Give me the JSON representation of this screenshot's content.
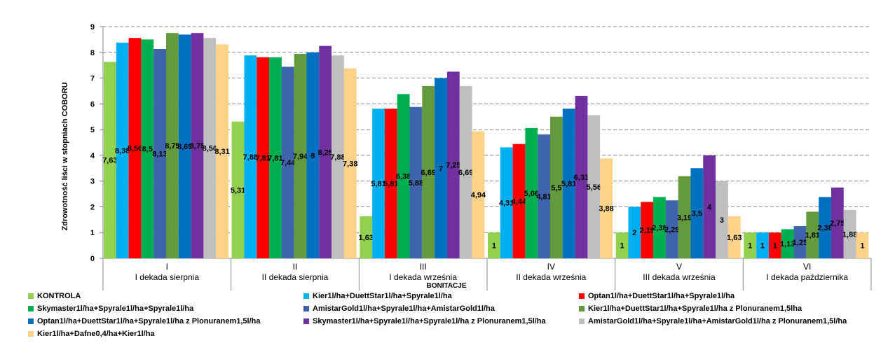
{
  "chart_data": {
    "type": "bar",
    "ylabel": "Zdrowotność liści w stopniach COBORU",
    "xlabel": "BONITACJE",
    "ylim": [
      0,
      9
    ],
    "yticks": [
      "0",
      "1",
      "2",
      "3",
      "4",
      "5",
      "6",
      "7",
      "8",
      "9"
    ],
    "grid": "horizontal dashed",
    "legend_placement": "bottom",
    "categories": [
      [
        "I",
        "I dekada sierpnia"
      ],
      [
        "II",
        "II dekada sierpnia"
      ],
      [
        "III",
        "I dekada września"
      ],
      [
        "IV",
        "II dekada września"
      ],
      [
        "V",
        "III dekada września"
      ],
      [
        "VI",
        "I dekada października"
      ]
    ],
    "series": [
      {
        "name": "KONTROLA",
        "color": "#92D050",
        "values": [
          7.63,
          5.31,
          1.63,
          1,
          1,
          1
        ]
      },
      {
        "name": "Kier1l/ha+DuettStar1l/ha+Spyrale1l/ha",
        "color": "#00B0F0",
        "values": [
          8.38,
          7.88,
          5.81,
          4.31,
          2,
          1
        ]
      },
      {
        "name": "Optan1l/ha+DuettStar1l/ha+Spyrale1l/ha",
        "color": "#FF0000",
        "values": [
          8.56,
          7.81,
          5.81,
          4.44,
          2.19,
          1
        ]
      },
      {
        "name": "Skymaster1l/ha+Spyrale1l/ha+Spyrale1l/ha",
        "color": "#00B050",
        "values": [
          8.5,
          7.81,
          6.38,
          5.06,
          2.38,
          1.13
        ]
      },
      {
        "name": "AmistarGold1l/ha+Spyrale1l/ha+AmistarGold1l/ha",
        "color": "#3E64AD",
        "values": [
          8.13,
          7.44,
          5.88,
          4.81,
          2.25,
          1.25
        ]
      },
      {
        "name": "Kier1l/ha+DuettStar1l/ha+Spyrale1l/ha z Plonuranem1,5lha",
        "color": "#629A3D",
        "values": [
          8.75,
          7.94,
          6.69,
          5.5,
          3.19,
          1.81
        ]
      },
      {
        "name": "Optan1l/ha+DuettStar1l/ha+Spyrale1l/ha z Plonuranem1,5l/ha",
        "color": "#0070C0",
        "values": [
          8.69,
          8,
          7,
          5.81,
          3.5,
          2.38
        ]
      },
      {
        "name": "Skymaster1l/ha+Spyrale1l/ha+Spyrale1l/ha z Plonuranem1,5l/ha",
        "color": "#7030A0",
        "values": [
          8.75,
          8.25,
          7.25,
          6.31,
          4,
          2.75
        ]
      },
      {
        "name": "AmistarGold1l/ha+Spyrale1l/ha+AmistarGold1l/ha z Plonuranem1,5l/ha",
        "color": "#BFBFBF",
        "values": [
          8.56,
          7.88,
          6.69,
          5.56,
          3,
          1.88
        ]
      },
      {
        "name": "Kier1l/ha+Dafne0,4/ha+Kier1l/ha",
        "color": "#FFD28A",
        "values": [
          8.31,
          7.38,
          4.94,
          3.88,
          1.63,
          1
        ]
      }
    ]
  }
}
